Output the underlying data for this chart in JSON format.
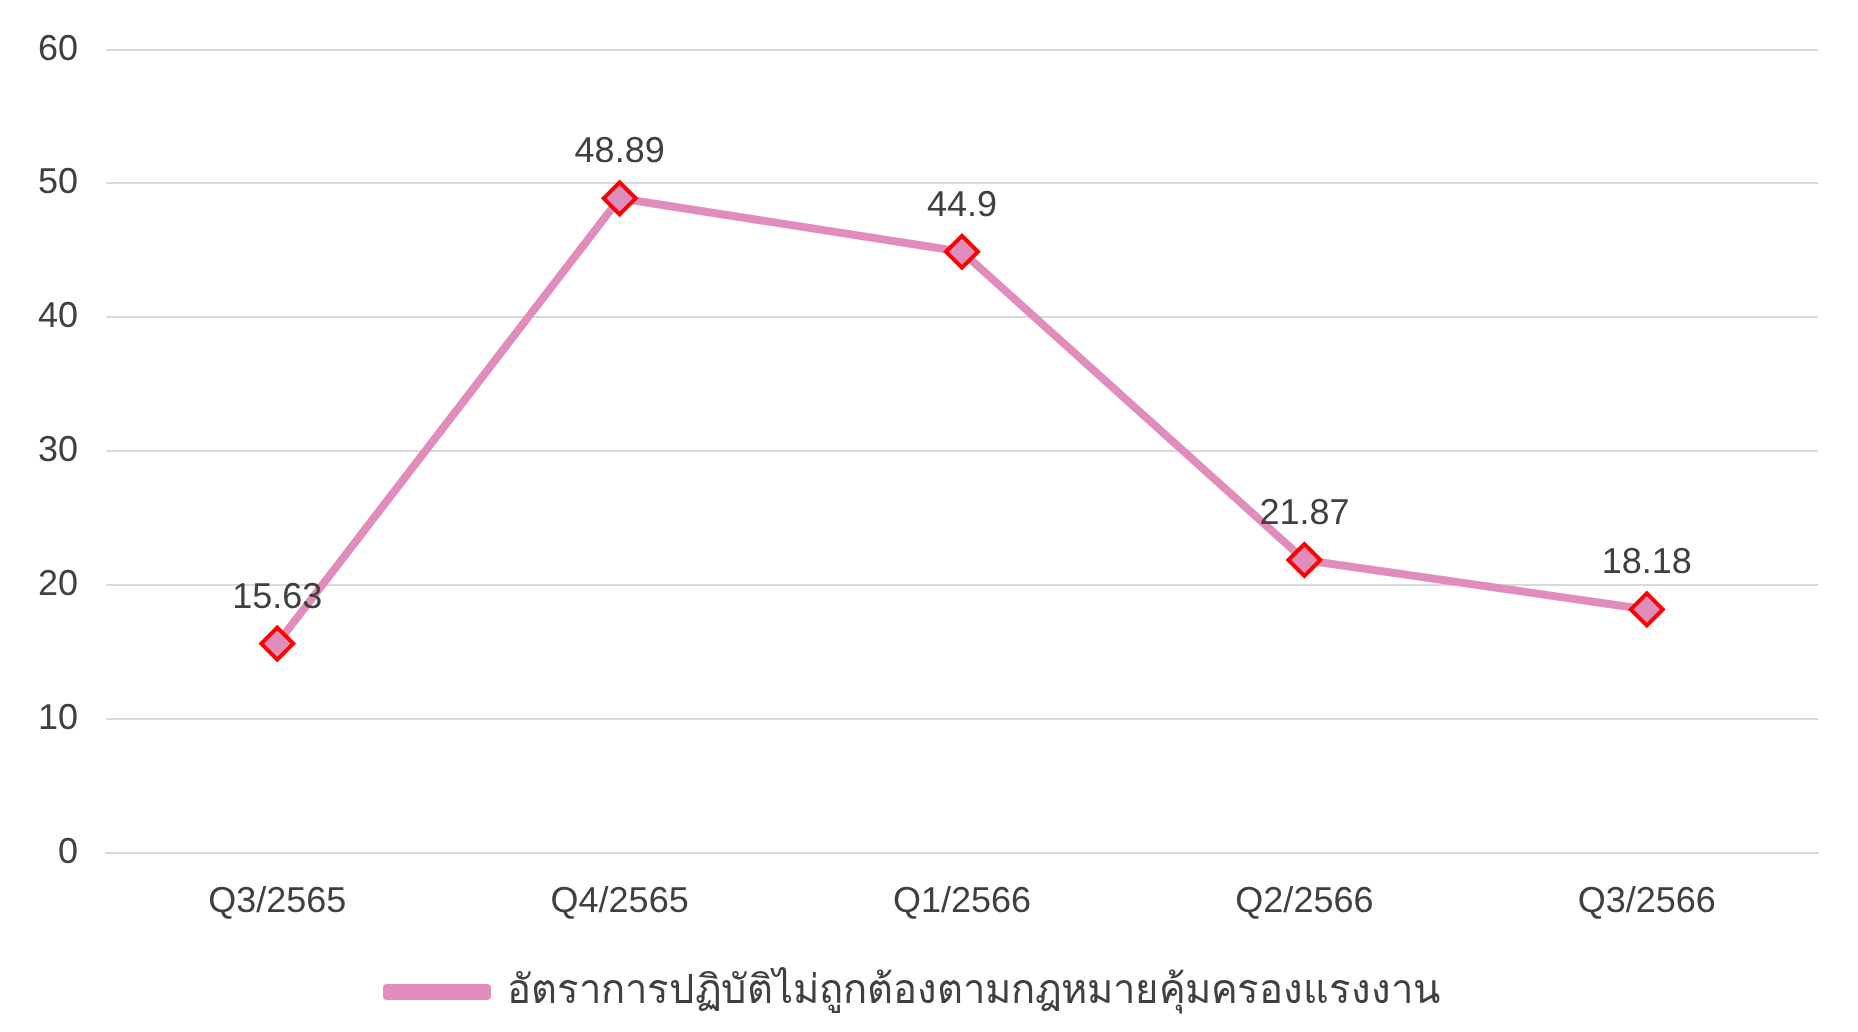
{
  "chart_data": {
    "type": "line",
    "categories": [
      "Q3/2565",
      "Q4/2565",
      "Q1/2566",
      "Q2/2566",
      "Q3/2566"
    ],
    "series": [
      {
        "name": "อัตราการปฏิบัติไม่ถูกต้องตามกฎหมายคุ้มครองแรงงาน",
        "color": "#e08cbc",
        "values": [
          15.63,
          48.89,
          44.9,
          21.87,
          18.18
        ]
      }
    ],
    "ylim": [
      0,
      60
    ],
    "yticks": [
      0,
      10,
      20,
      30,
      40,
      50,
      60
    ],
    "grid": "y",
    "legend": "bottom",
    "marker": "diamond",
    "line_style": "solid",
    "data_labels": true
  }
}
